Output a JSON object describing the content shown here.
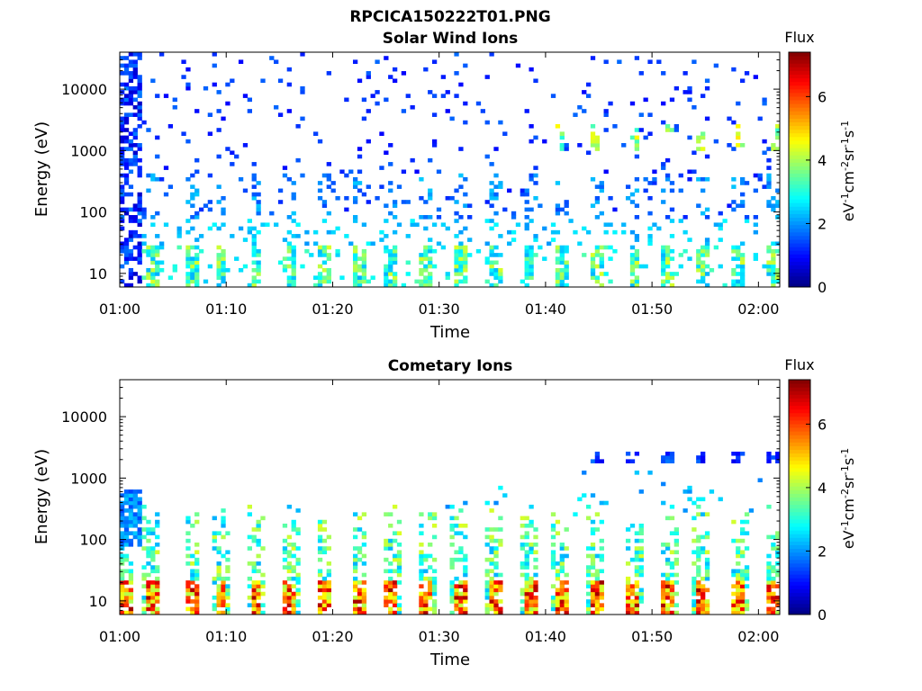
{
  "page_title": "RPCICA150222T01.PNG",
  "chart_data": [
    {
      "type": "heatmap",
      "title": "Solar Wind Ions",
      "xlabel": "Time",
      "ylabel": "Energy (eV)",
      "x_ticks": [
        "01:00",
        "01:10",
        "01:20",
        "01:30",
        "01:40",
        "01:50",
        "02:00"
      ],
      "y_scale": "log",
      "y_ticks": [
        10,
        100,
        1000,
        10000
      ],
      "y_tick_labels": [
        "10",
        "100",
        "1000",
        "10000"
      ],
      "ylim": [
        6,
        40000
      ],
      "colorbar": {
        "title": "Flux",
        "label": "eV-1cm-2sr-1s-1",
        "range": [
          0,
          7.4
        ],
        "ticks": [
          "0",
          "2",
          "4",
          "6"
        ],
        "colormap": "jet"
      },
      "grid": false,
      "bursts_minutes": [
        3,
        6.8,
        9.5,
        12.8,
        16,
        19.2,
        22.5,
        25.5,
        28.8,
        32,
        35.3,
        38.5,
        41.5,
        44.8,
        48.3,
        51.5,
        54.7,
        58.2,
        61.5
      ],
      "description_of_pattern": "dense blue strip at 01:00-01:02 across all energies; cyan/green vertical bursts below ~30 eV; scattered blue pixels above 100 eV; small green/yellow clusters near 1000-2000 eV after 01:40"
    },
    {
      "type": "heatmap",
      "title": "Cometary Ions",
      "xlabel": "Time",
      "ylabel": "Energy (eV)",
      "x_ticks": [
        "01:00",
        "01:10",
        "01:20",
        "01:30",
        "01:40",
        "01:50",
        "02:00"
      ],
      "y_scale": "log",
      "y_ticks": [
        10,
        100,
        1000,
        10000
      ],
      "y_tick_labels": [
        "10",
        "100",
        "1000",
        "10000"
      ],
      "ylim": [
        6,
        40000
      ],
      "colorbar": {
        "title": "Flux",
        "label": "eV-1cm-2sr-1s-1",
        "range": [
          0,
          7.4
        ],
        "ticks": [
          "0",
          "2",
          "4",
          "6"
        ],
        "colormap": "jet"
      },
      "grid": false,
      "bursts_minutes": [
        0.5,
        3,
        6.8,
        9.5,
        12.8,
        16,
        19.2,
        22.5,
        25.5,
        28.8,
        32,
        35.3,
        38.5,
        41.5,
        44.8,
        48.3,
        51.5,
        54.7,
        58.2,
        61.5
      ],
      "description_of_pattern": "red/orange/yellow vertical bursts below ~20 eV roughly every 3 minutes, green/cyan tails extending to a few hundred eV; blue strip 100-600 eV at 01:00-01:02; blue dots near 2000 eV after 01:44"
    }
  ]
}
